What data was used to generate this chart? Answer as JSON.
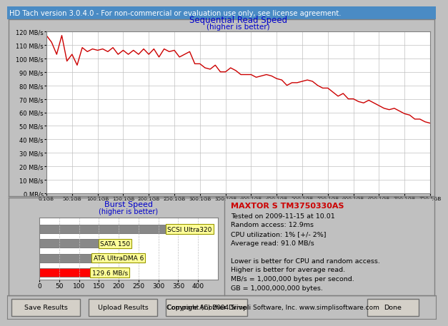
{
  "title_bar": "HD Tach version 3.0.4.0 - For non-commercial or evaluation use only, see license agreement.",
  "title_bar_bg": "#4a8bc4",
  "title_bar_fg": "white",
  "seq_title": "Sequential Read Speed",
  "seq_subtitle": "(higher is better)",
  "seq_title_color": "#0000cc",
  "bg_color": "#c0c0c0",
  "chart_bg": "#ffffff",
  "read_line_color": "#cc0000",
  "yticks": [
    0,
    10,
    20,
    30,
    40,
    50,
    60,
    70,
    80,
    90,
    100,
    110,
    120
  ],
  "ytick_labels": [
    "0 MB/s",
    "10 MB/s",
    "20 MB/s",
    "30 MB/s",
    "40 MB/s",
    "50 MB/s",
    "60 MB/s",
    "70 MB/s",
    "80 MB/s",
    "90 MB/s",
    "100 MB/s",
    "110 MB/s",
    "120 MB/s"
  ],
  "xtick_labels": [
    "0.1GB",
    "50.1GB",
    "100.1GB",
    "150.1GB",
    "200.1GB",
    "250.1GB",
    "300.1GB",
    "350.1GB",
    "400.1GB",
    "450.1GB",
    "500.1GB",
    "550.1GB",
    "600.1GB",
    "650.1GB",
    "700.1GB",
    "750.1GB"
  ],
  "read_y": [
    117,
    112,
    103,
    117,
    98,
    103,
    95,
    108,
    105,
    107,
    106,
    107,
    105,
    108,
    103,
    106,
    103,
    106,
    103,
    107,
    103,
    107,
    101,
    107,
    105,
    106,
    101,
    103,
    105,
    96,
    96,
    93,
    92,
    95,
    90,
    90,
    93,
    91,
    88,
    88,
    88,
    86,
    87,
    88,
    87,
    85,
    84,
    80,
    82,
    82,
    83,
    84,
    83,
    80,
    78,
    78,
    75,
    72,
    74,
    70,
    70,
    68,
    67,
    69,
    67,
    65,
    63,
    62,
    63,
    61,
    59,
    58,
    55,
    55,
    53,
    52
  ],
  "burst_title": "Burst Speed",
  "burst_subtitle": "(higher is better)",
  "burst_title_color": "#0000cc",
  "burst_bars": [
    {
      "label": "SCSI Ultra320",
      "value": 320,
      "color": "#888888"
    },
    {
      "label": "SATA 150",
      "value": 150,
      "color": "#888888"
    },
    {
      "label": "ATA UltraDMA 6",
      "value": 133,
      "color": "#888888"
    },
    {
      "label": "129.6 MB/s",
      "value": 129.6,
      "color": "#ff0000"
    }
  ],
  "burst_xticks": [
    0,
    50,
    100,
    150,
    200,
    250,
    300,
    350,
    400
  ],
  "info_title": "MAXTOR S TM3750330AS",
  "info_title_color": "#cc0000",
  "info_lines": [
    "Tested on 2009-11-15 at 10.01",
    "Random access: 12.9ms",
    "CPU utilization: 1% [+/- 2%]",
    "Average read: 91.0 MB/s",
    "",
    "Lower is better for CPU and random access.",
    "Higher is better for average read.",
    "MB/s = 1,000,000 bytes per second.",
    "GB = 1,000,000,000 bytes."
  ],
  "info_color": "#000000",
  "footer_text": "Copyright (C) 2004 Simpli Software, Inc. www.simplisoftware.com",
  "btn_labels": [
    "Save Results",
    "Upload Results",
    "Compare Another Drive",
    "Done"
  ],
  "label_color": "#ffff99",
  "label_border": "#999900"
}
